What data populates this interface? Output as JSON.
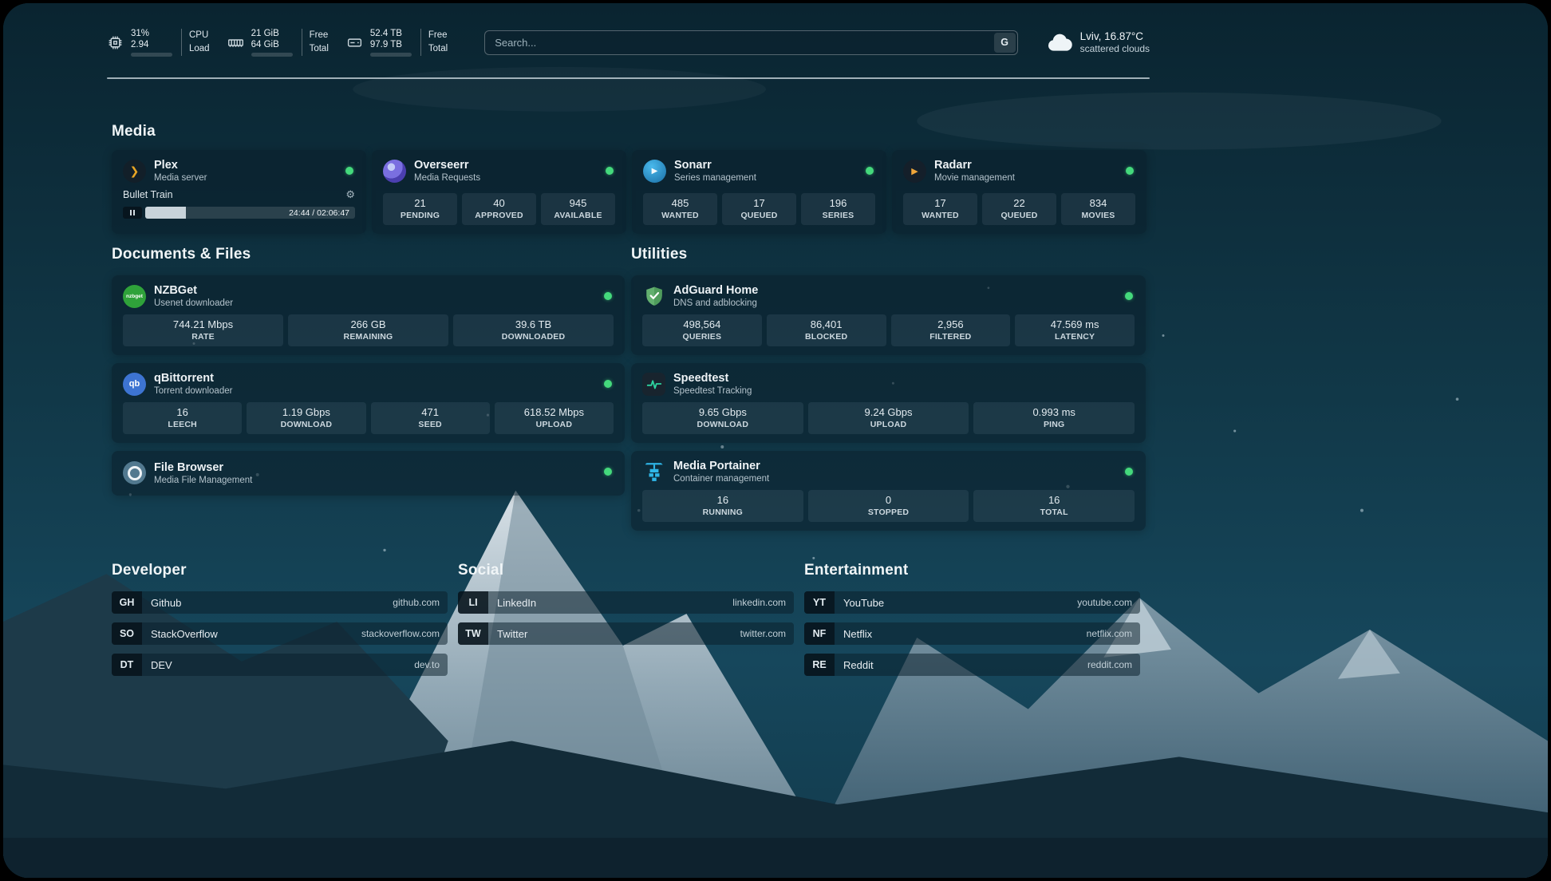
{
  "theme": {
    "status_online": "#44d97c"
  },
  "topbar": {
    "cpu": {
      "usage": "31%",
      "load": "2.94",
      "label_top": "CPU",
      "label_bottom": "Load",
      "bar_percent": 31
    },
    "ram": {
      "free": "21 GiB",
      "total": "64 GiB",
      "label_top": "Free",
      "label_bottom": "Total",
      "bar_percent": 67
    },
    "disk": {
      "free": "52.4 TB",
      "total": "97.9 TB",
      "label_top": "Free",
      "label_bottom": "Total",
      "bar_percent": 46
    },
    "search": {
      "placeholder": "Search...",
      "button_label": "G"
    },
    "weather": {
      "location": "Lviv, 16.87°C",
      "condition": "scattered clouds"
    }
  },
  "media": {
    "title": "Media",
    "apps": [
      {
        "name": "Plex",
        "subtitle": "Media server",
        "now_playing": {
          "title": "Bullet Train",
          "time": "24:44 / 02:06:47",
          "progress_percent": 19.5
        }
      },
      {
        "name": "Overseerr",
        "subtitle": "Media Requests",
        "stats": [
          {
            "value": "21",
            "label": "PENDING"
          },
          {
            "value": "40",
            "label": "APPROVED"
          },
          {
            "value": "945",
            "label": "AVAILABLE"
          }
        ]
      },
      {
        "name": "Sonarr",
        "subtitle": "Series management",
        "stats": [
          {
            "value": "485",
            "label": "WANTED"
          },
          {
            "value": "17",
            "label": "QUEUED"
          },
          {
            "value": "196",
            "label": "SERIES"
          }
        ]
      },
      {
        "name": "Radarr",
        "subtitle": "Movie management",
        "stats": [
          {
            "value": "17",
            "label": "WANTED"
          },
          {
            "value": "22",
            "label": "QUEUED"
          },
          {
            "value": "834",
            "label": "MOVIES"
          }
        ]
      }
    ]
  },
  "documents": {
    "title": "Documents & Files",
    "apps": [
      {
        "name": "NZBGet",
        "subtitle": "Usenet downloader",
        "stats": [
          {
            "value": "744.21 Mbps",
            "label": "RATE"
          },
          {
            "value": "266 GB",
            "label": "REMAINING"
          },
          {
            "value": "39.6 TB",
            "label": "DOWNLOADED"
          }
        ]
      },
      {
        "name": "qBittorrent",
        "subtitle": "Torrent downloader",
        "stats": [
          {
            "value": "16",
            "label": "LEECH"
          },
          {
            "value": "1.19 Gbps",
            "label": "DOWNLOAD"
          },
          {
            "value": "471",
            "label": "SEED"
          },
          {
            "value": "618.52 Mbps",
            "label": "UPLOAD"
          }
        ]
      },
      {
        "name": "File Browser",
        "subtitle": "Media File Management"
      }
    ]
  },
  "utilities": {
    "title": "Utilities",
    "apps": [
      {
        "name": "AdGuard Home",
        "subtitle": "DNS and adblocking",
        "stats": [
          {
            "value": "498,564",
            "label": "QUERIES"
          },
          {
            "value": "86,401",
            "label": "BLOCKED"
          },
          {
            "value": "2,956",
            "label": "FILTERED"
          },
          {
            "value": "47.569 ms",
            "label": "LATENCY"
          }
        ]
      },
      {
        "name": "Speedtest",
        "subtitle": "Speedtest Tracking",
        "stats": [
          {
            "value": "9.65 Gbps",
            "label": "DOWNLOAD"
          },
          {
            "value": "9.24 Gbps",
            "label": "UPLOAD"
          },
          {
            "value": "0.993 ms",
            "label": "PING"
          }
        ]
      },
      {
        "name": "Media Portainer",
        "subtitle": "Container management",
        "stats": [
          {
            "value": "16",
            "label": "RUNNING"
          },
          {
            "value": "0",
            "label": "STOPPED"
          },
          {
            "value": "16",
            "label": "TOTAL"
          }
        ]
      }
    ]
  },
  "link_groups": [
    {
      "title": "Developer",
      "items": [
        {
          "abbr": "GH",
          "name": "Github",
          "url": "github.com"
        },
        {
          "abbr": "SO",
          "name": "StackOverflow",
          "url": "stackoverflow.com"
        },
        {
          "abbr": "DT",
          "name": "DEV",
          "url": "dev.to"
        }
      ]
    },
    {
      "title": "Social",
      "items": [
        {
          "abbr": "LI",
          "name": "LinkedIn",
          "url": "linkedin.com"
        },
        {
          "abbr": "TW",
          "name": "Twitter",
          "url": "twitter.com"
        }
      ]
    },
    {
      "title": "Entertainment",
      "items": [
        {
          "abbr": "YT",
          "name": "YouTube",
          "url": "youtube.com"
        },
        {
          "abbr": "NF",
          "name": "Netflix",
          "url": "netflix.com"
        },
        {
          "abbr": "RE",
          "name": "Reddit",
          "url": "reddit.com"
        }
      ]
    }
  ]
}
